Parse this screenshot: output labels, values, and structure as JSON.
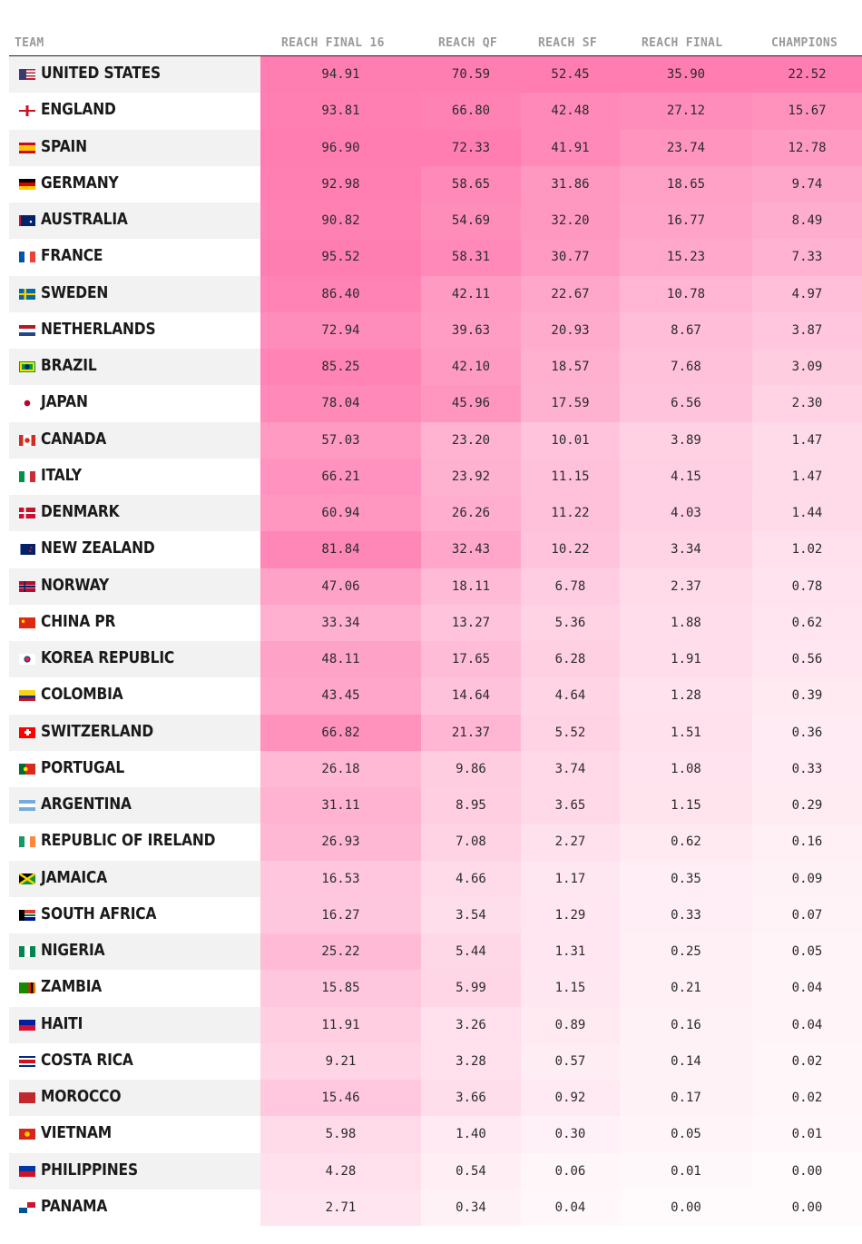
{
  "chart_data": {
    "type": "table",
    "columns": [
      "TEAM",
      "REACH FINAL 16",
      "REACH QF",
      "REACH SF",
      "REACH FINAL",
      "CHAMPIONS"
    ],
    "heat_color": "#ff5c9d",
    "rows": [
      {
        "team": "UNITED STATES",
        "flag": "us-flag-icon",
        "values": [
          "94.91",
          "70.59",
          "52.45",
          "35.90",
          "22.52"
        ]
      },
      {
        "team": "ENGLAND",
        "flag": "england-flag-icon",
        "values": [
          "93.81",
          "66.80",
          "42.48",
          "27.12",
          "15.67"
        ]
      },
      {
        "team": "SPAIN",
        "flag": "spain-flag-icon",
        "values": [
          "96.90",
          "72.33",
          "41.91",
          "23.74",
          "12.78"
        ]
      },
      {
        "team": "GERMANY",
        "flag": "germany-flag-icon",
        "values": [
          "92.98",
          "58.65",
          "31.86",
          "18.65",
          "9.74"
        ]
      },
      {
        "team": "AUSTRALIA",
        "flag": "australia-flag-icon",
        "values": [
          "90.82",
          "54.69",
          "32.20",
          "16.77",
          "8.49"
        ]
      },
      {
        "team": "FRANCE",
        "flag": "france-flag-icon",
        "values": [
          "95.52",
          "58.31",
          "30.77",
          "15.23",
          "7.33"
        ]
      },
      {
        "team": "SWEDEN",
        "flag": "sweden-flag-icon",
        "values": [
          "86.40",
          "42.11",
          "22.67",
          "10.78",
          "4.97"
        ]
      },
      {
        "team": "NETHERLANDS",
        "flag": "netherlands-flag-icon",
        "values": [
          "72.94",
          "39.63",
          "20.93",
          "8.67",
          "3.87"
        ]
      },
      {
        "team": "BRAZIL",
        "flag": "brazil-flag-icon",
        "values": [
          "85.25",
          "42.10",
          "18.57",
          "7.68",
          "3.09"
        ]
      },
      {
        "team": "JAPAN",
        "flag": "japan-flag-icon",
        "values": [
          "78.04",
          "45.96",
          "17.59",
          "6.56",
          "2.30"
        ]
      },
      {
        "team": "CANADA",
        "flag": "canada-flag-icon",
        "values": [
          "57.03",
          "23.20",
          "10.01",
          "3.89",
          "1.47"
        ]
      },
      {
        "team": "ITALY",
        "flag": "italy-flag-icon",
        "values": [
          "66.21",
          "23.92",
          "11.15",
          "4.15",
          "1.47"
        ]
      },
      {
        "team": "DENMARK",
        "flag": "denmark-flag-icon",
        "values": [
          "60.94",
          "26.26",
          "11.22",
          "4.03",
          "1.44"
        ]
      },
      {
        "team": "NEW ZEALAND",
        "flag": "new-zealand-flag-icon",
        "values": [
          "81.84",
          "32.43",
          "10.22",
          "3.34",
          "1.02"
        ]
      },
      {
        "team": "NORWAY",
        "flag": "norway-flag-icon",
        "values": [
          "47.06",
          "18.11",
          "6.78",
          "2.37",
          "0.78"
        ]
      },
      {
        "team": "CHINA PR",
        "flag": "china-flag-icon",
        "values": [
          "33.34",
          "13.27",
          "5.36",
          "1.88",
          "0.62"
        ]
      },
      {
        "team": "KOREA REPUBLIC",
        "flag": "korea-flag-icon",
        "values": [
          "48.11",
          "17.65",
          "6.28",
          "1.91",
          "0.56"
        ]
      },
      {
        "team": "COLOMBIA",
        "flag": "colombia-flag-icon",
        "values": [
          "43.45",
          "14.64",
          "4.64",
          "1.28",
          "0.39"
        ]
      },
      {
        "team": "SWITZERLAND",
        "flag": "switzerland-flag-icon",
        "values": [
          "66.82",
          "21.37",
          "5.52",
          "1.51",
          "0.36"
        ]
      },
      {
        "team": "PORTUGAL",
        "flag": "portugal-flag-icon",
        "values": [
          "26.18",
          "9.86",
          "3.74",
          "1.08",
          "0.33"
        ]
      },
      {
        "team": "ARGENTINA",
        "flag": "argentina-flag-icon",
        "values": [
          "31.11",
          "8.95",
          "3.65",
          "1.15",
          "0.29"
        ]
      },
      {
        "team": "REPUBLIC OF IRELAND",
        "flag": "ireland-flag-icon",
        "values": [
          "26.93",
          "7.08",
          "2.27",
          "0.62",
          "0.16"
        ]
      },
      {
        "team": "JAMAICA",
        "flag": "jamaica-flag-icon",
        "values": [
          "16.53",
          "4.66",
          "1.17",
          "0.35",
          "0.09"
        ]
      },
      {
        "team": "SOUTH AFRICA",
        "flag": "south-africa-flag-icon",
        "values": [
          "16.27",
          "3.54",
          "1.29",
          "0.33",
          "0.07"
        ]
      },
      {
        "team": "NIGERIA",
        "flag": "nigeria-flag-icon",
        "values": [
          "25.22",
          "5.44",
          "1.31",
          "0.25",
          "0.05"
        ]
      },
      {
        "team": "ZAMBIA",
        "flag": "zambia-flag-icon",
        "values": [
          "15.85",
          "5.99",
          "1.15",
          "0.21",
          "0.04"
        ]
      },
      {
        "team": "HAITI",
        "flag": "haiti-flag-icon",
        "values": [
          "11.91",
          "3.26",
          "0.89",
          "0.16",
          "0.04"
        ]
      },
      {
        "team": "COSTA RICA",
        "flag": "costa-rica-flag-icon",
        "values": [
          "9.21",
          "3.28",
          "0.57",
          "0.14",
          "0.02"
        ]
      },
      {
        "team": "MOROCCO",
        "flag": "morocco-flag-icon",
        "values": [
          "15.46",
          "3.66",
          "0.92",
          "0.17",
          "0.02"
        ]
      },
      {
        "team": "VIETNAM",
        "flag": "vietnam-flag-icon",
        "values": [
          "5.98",
          "1.40",
          "0.30",
          "0.05",
          "0.01"
        ]
      },
      {
        "team": "PHILIPPINES",
        "flag": "philippines-flag-icon",
        "values": [
          "4.28",
          "0.54",
          "0.06",
          "0.01",
          "0.00"
        ]
      },
      {
        "team": "PANAMA",
        "flag": "panama-flag-icon",
        "values": [
          "2.71",
          "0.34",
          "0.04",
          "0.00",
          "0.00"
        ]
      }
    ]
  }
}
